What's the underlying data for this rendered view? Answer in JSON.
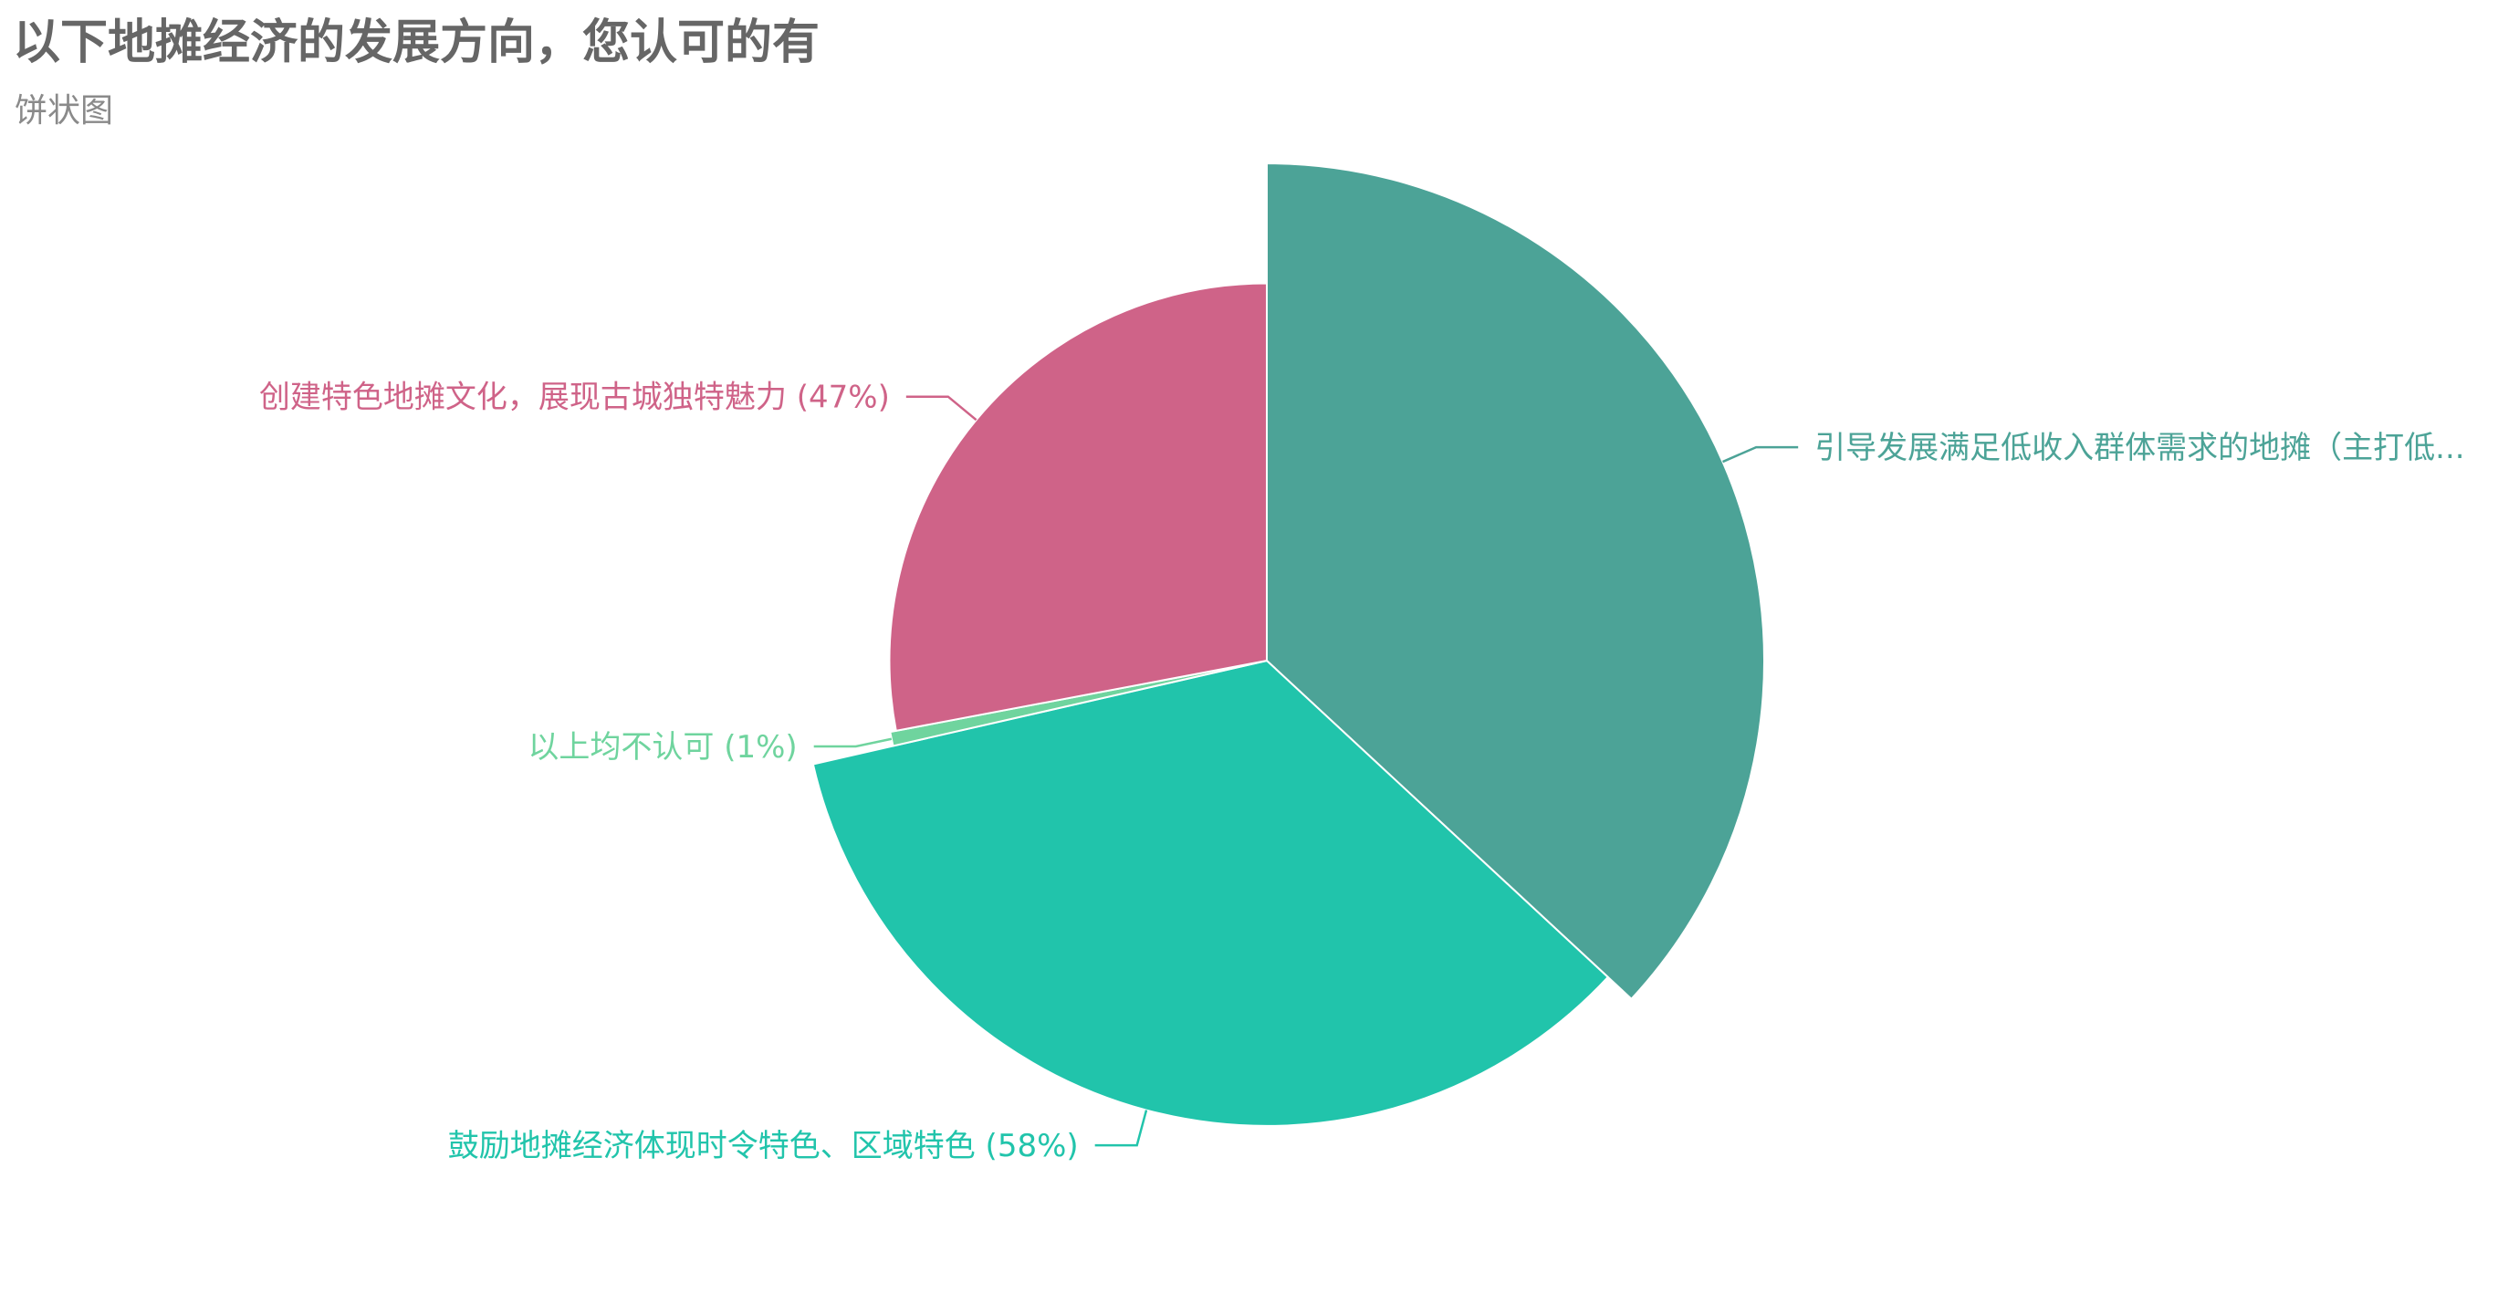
{
  "header": {
    "title": "以下地摊经济的发展方向，您认可的有",
    "subtitle": "饼状图"
  },
  "chart_data": {
    "type": "pie",
    "rose_type": "radius",
    "title": "以下地摊经济的发展方向，您认可的有",
    "subtitle": "饼状图",
    "slices": [
      {
        "label": "引导发展满足低收入群体需求的地摊（主打低...",
        "value": 62,
        "color": "#4ca397"
      },
      {
        "label": "鼓励地摊经济体现时令特色、区域特色 (58%)",
        "value": 58,
        "color": "#21c4ab"
      },
      {
        "label": "以上均不认可 (1%)",
        "value": 1,
        "color": "#6fd49e"
      },
      {
        "label": "创建特色地摊文化，展现古城独特魅力 (47%)",
        "value": 47,
        "color": "#cf6388"
      }
    ]
  }
}
